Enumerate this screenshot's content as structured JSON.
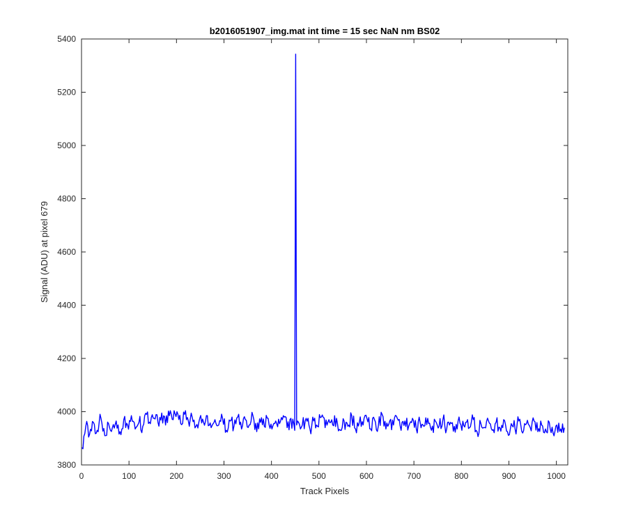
{
  "chart_data": {
    "type": "line",
    "title": "b2016051907_img.mat int time = 15 sec  NaN nm BS02",
    "xlabel": "Track Pixels",
    "ylabel": "Signal (ADU) at pixel 679",
    "xlim": [
      0,
      1024
    ],
    "ylim": [
      3800,
      5400
    ],
    "xticks": [
      0,
      100,
      200,
      300,
      400,
      500,
      600,
      700,
      800,
      900,
      1000
    ],
    "yticks": [
      3800,
      4000,
      4200,
      4400,
      4600,
      4800,
      5000,
      5200,
      5400
    ],
    "grid": false,
    "line_color": "#0000ff",
    "series": [
      {
        "x_start": 1,
        "x_step": 8,
        "values": [
          3865,
          3945,
          3915,
          3960,
          3930,
          3975,
          3910,
          3955,
          3940,
          3965,
          3925,
          3970,
          3950,
          3985,
          3935,
          3960,
          3945,
          3990,
          3955,
          3975,
          3960,
          3995,
          3950,
          3985,
          3970,
          4000,
          3955,
          3990,
          3965,
          3980,
          3945,
          3975,
          3960,
          3985,
          3940,
          3970,
          3950,
          3975,
          3930,
          3965,
          3945,
          3980,
          3935,
          3970,
          3950,
          3985,
          3925,
          3960,
          3945,
          3975,
          3935,
          3965,
          3955,
          3985,
          3940,
          3975,
          3930,
          3960,
          3950,
          3975,
          3935,
          3965,
          3945,
          3980,
          3940,
          3970,
          3950,
          3975,
          3930,
          3965,
          3945,
          3985,
          3935,
          3960,
          3950,
          3975,
          3935,
          3970,
          3945,
          3990,
          3935,
          3965,
          3950,
          3975,
          3930,
          3965,
          3945,
          3975,
          3935,
          3960,
          3945,
          3975,
          3930,
          3965,
          3945,
          3970,
          3935,
          3960,
          3945,
          3965,
          3930,
          3960,
          3940,
          3970,
          3925,
          3955,
          3940,
          3965,
          3930,
          3960,
          3940,
          3970,
          3925,
          3955,
          3935,
          3965,
          3920,
          3955,
          3940,
          3965,
          3925,
          3950,
          3935,
          3960,
          3920,
          3950,
          3935,
          3940
        ]
      }
    ],
    "annotations": [
      {
        "x": 451,
        "y": 5343
      },
      {
        "x": 449,
        "y": 3950
      },
      {
        "x": 453,
        "y": 3950
      }
    ]
  }
}
